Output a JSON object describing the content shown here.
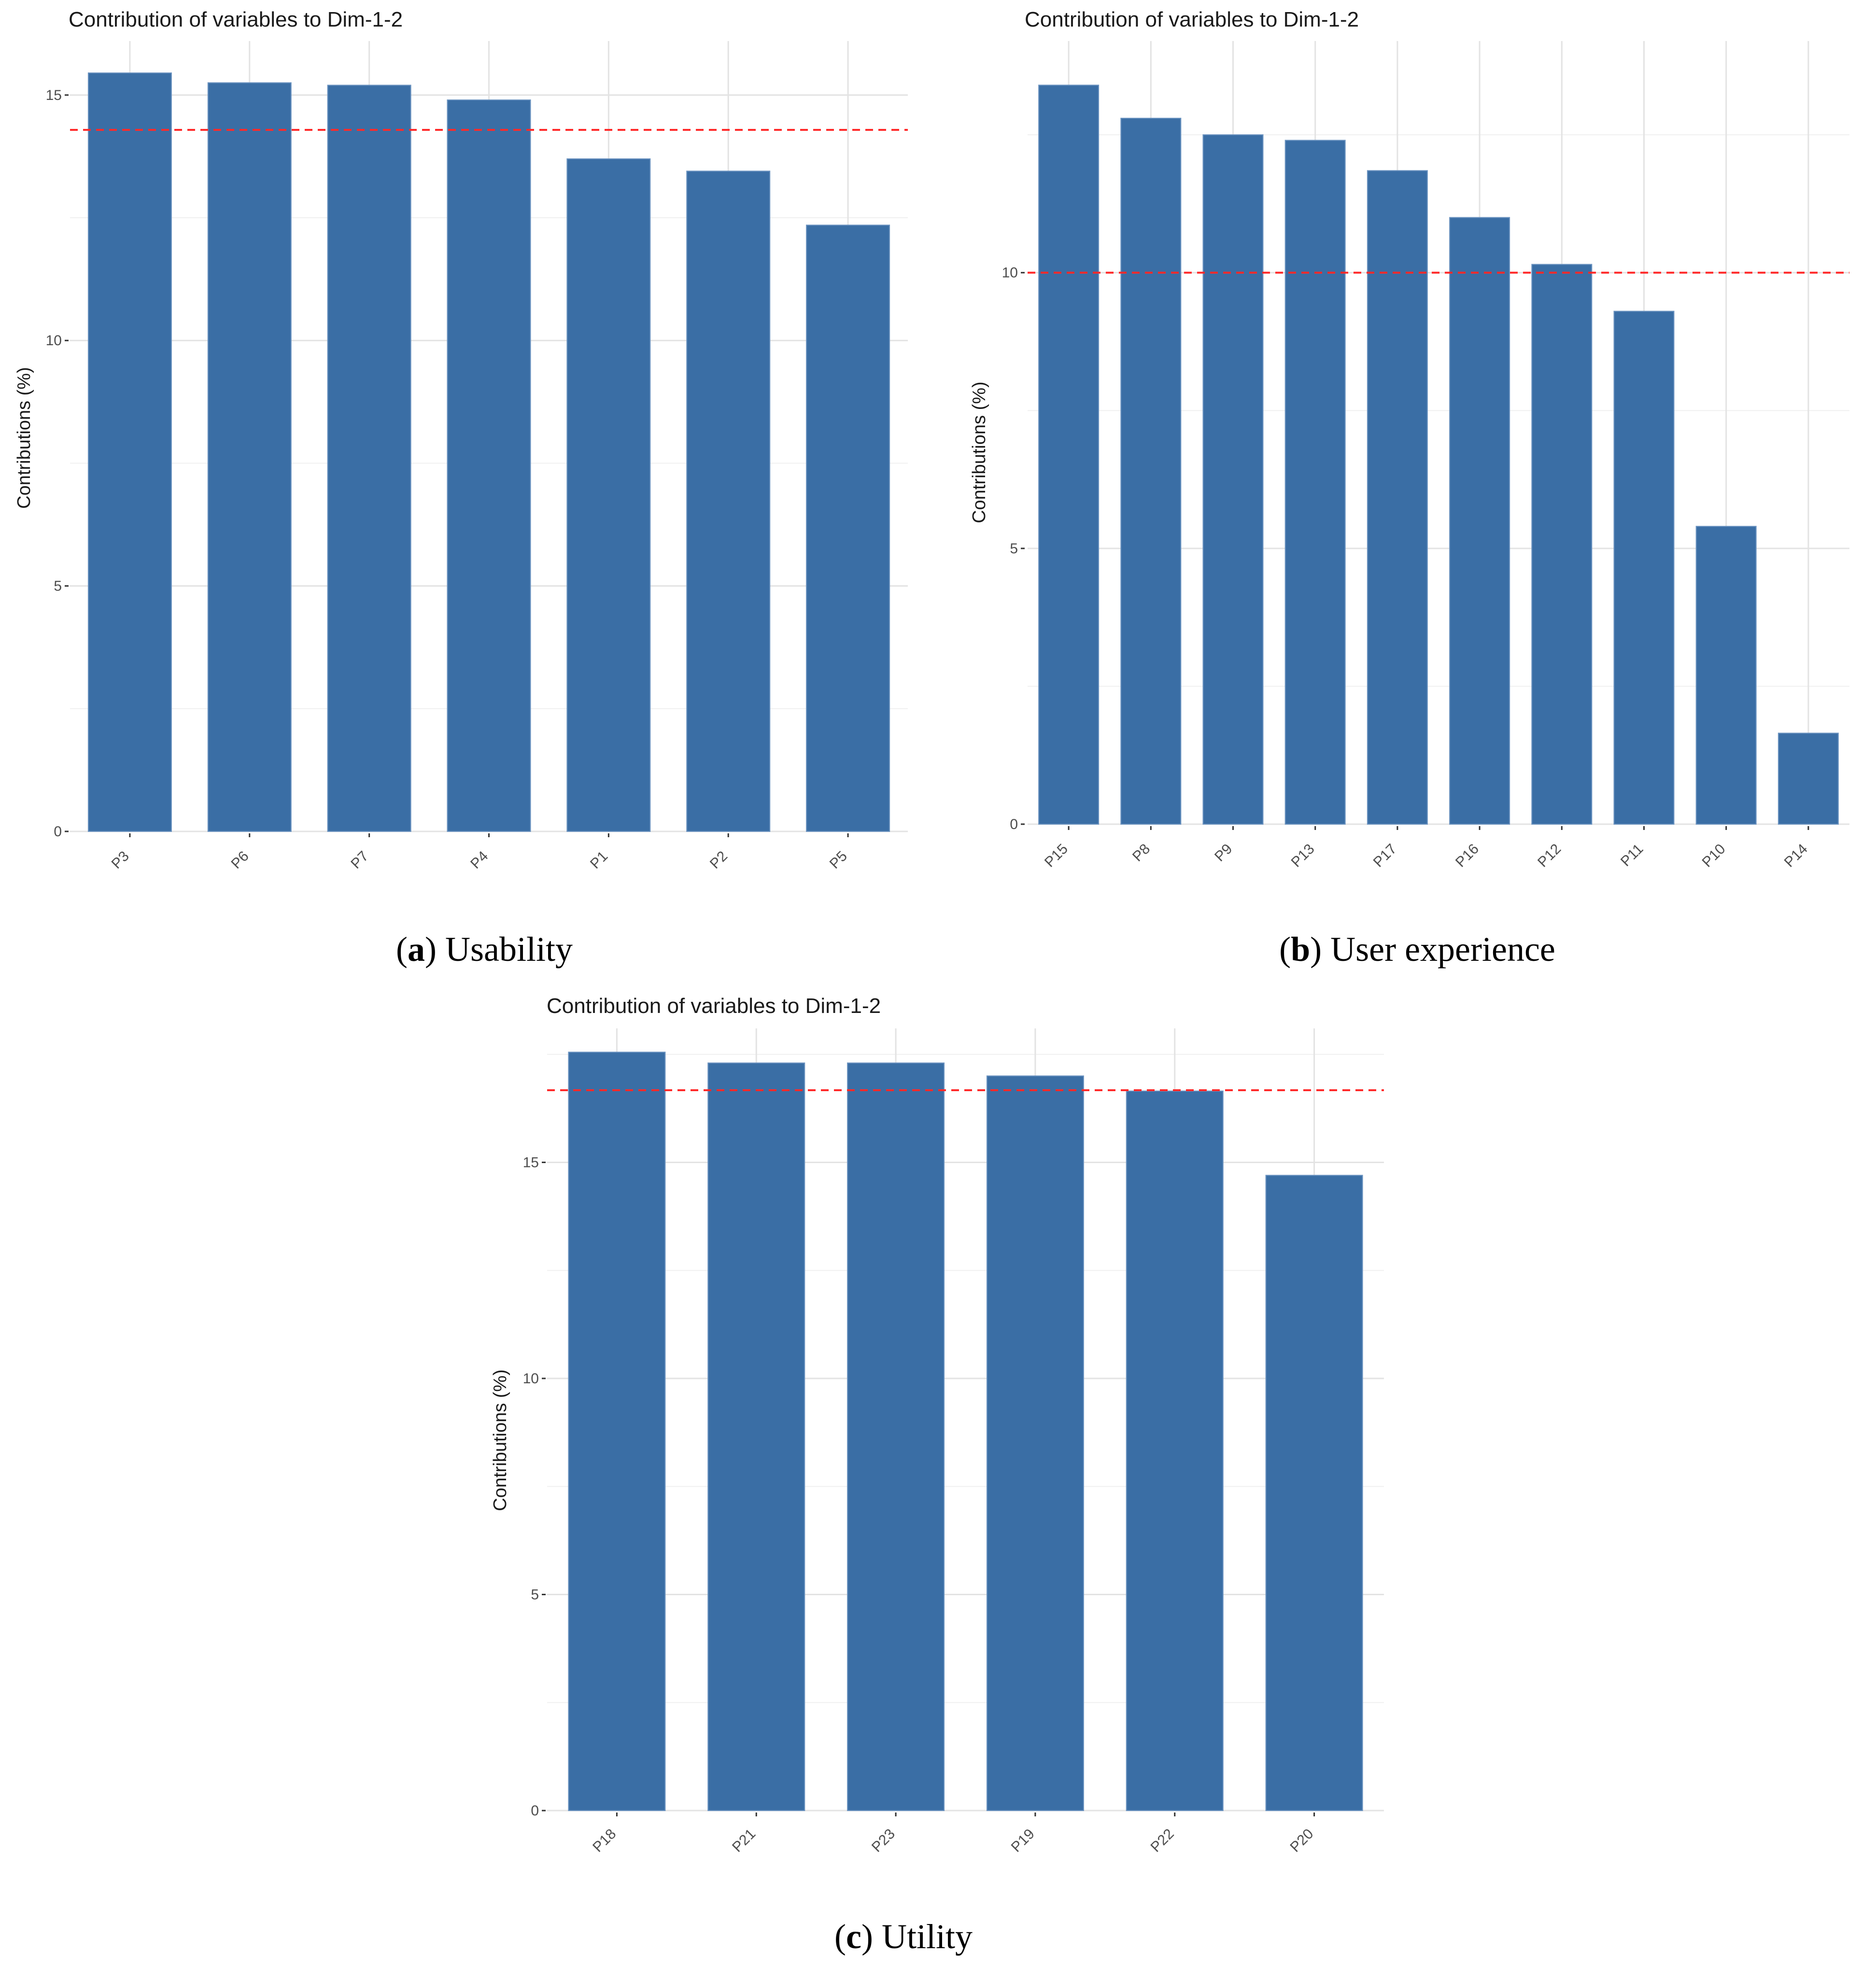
{
  "colors": {
    "bar": "#3a6ea5",
    "reference_line": "#ff2a2a",
    "grid_major": "#e3e3e3",
    "grid_minor": "#f0f0f0"
  },
  "chart_data": [
    {
      "type": "bar",
      "title": "Contribution of variables to Dim-1-2",
      "xlabel": "",
      "ylabel": "Contributions (%)",
      "categories": [
        "P3",
        "P6",
        "P7",
        "P4",
        "P1",
        "P2",
        "P5"
      ],
      "values": [
        15.45,
        15.25,
        15.2,
        14.9,
        13.7,
        13.45,
        12.35
      ],
      "ylim": [
        0,
        16.1
      ],
      "yticks": [
        0,
        5,
        10,
        15
      ],
      "reference_line": 14.29,
      "caption": {
        "letter": "a",
        "text": "Usability"
      }
    },
    {
      "type": "bar",
      "title": "Contribution of variables to Dim-1-2",
      "xlabel": "",
      "ylabel": "Contributions (%)",
      "categories": [
        "P15",
        "P8",
        "P9",
        "P13",
        "P17",
        "P16",
        "P12",
        "P11",
        "P10",
        "P14"
      ],
      "values": [
        13.4,
        12.8,
        12.5,
        12.4,
        11.85,
        11.0,
        10.15,
        9.3,
        5.4,
        1.65
      ],
      "ylim": [
        0,
        14.2
      ],
      "yticks": [
        0,
        5,
        10
      ],
      "reference_line": 10,
      "caption": {
        "letter": "b",
        "text": "User experience"
      }
    },
    {
      "type": "bar",
      "title": "Contribution of variables to Dim-1-2",
      "xlabel": "",
      "ylabel": "Contributions (%)",
      "categories": [
        "P18",
        "P21",
        "P23",
        "P19",
        "P22",
        "P20"
      ],
      "values": [
        17.55,
        17.3,
        17.3,
        17.0,
        16.65,
        14.7
      ],
      "ylim": [
        0,
        18.1
      ],
      "yticks": [
        0,
        5,
        10,
        15
      ],
      "reference_line": 16.67,
      "caption": {
        "letter": "c",
        "text": "Utility"
      }
    }
  ]
}
